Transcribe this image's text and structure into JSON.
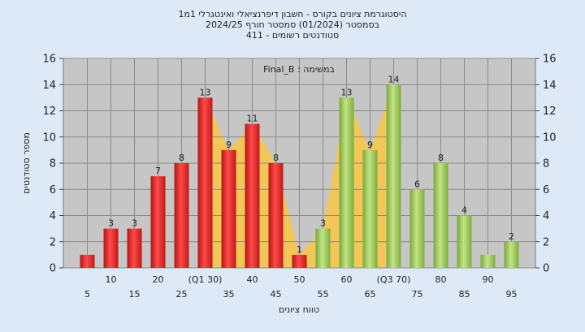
{
  "chart_data": {
    "type": "bar",
    "title_lines": [
      "היסטוגרמת ציונים בקורס - חשבון דיפרנציאלי ואינטגרלי 1מ1",
      "בסמסטר  (01/2024)  סמסטר חורף  2024/25",
      "סטודנטים רשומים - 411"
    ],
    "annotation": "Final_B : במשימה",
    "xlabel": "טווח ציונים",
    "ylabel": "מספר סטודנטים",
    "ylim": [
      0,
      16
    ],
    "yticks": [
      0,
      2,
      4,
      6,
      8,
      10,
      12,
      14,
      16
    ],
    "grid": true,
    "categories": [
      5,
      10,
      15,
      20,
      25,
      30,
      35,
      40,
      45,
      50,
      55,
      60,
      65,
      70,
      75,
      80,
      85,
      90,
      95
    ],
    "category_labels": [
      "5",
      "10",
      "15",
      "20",
      "25",
      "(Q1 30)",
      "35",
      "40",
      "45",
      "50",
      "55",
      "60",
      "65",
      "(Q3 70)",
      "75",
      "80",
      "85",
      "90",
      "95"
    ],
    "values": [
      1,
      3,
      3,
      7,
      8,
      13,
      9,
      11,
      8,
      1,
      3,
      13,
      9,
      14,
      6,
      8,
      4,
      1,
      2
    ],
    "value_labels": [
      "",
      "3",
      "3",
      "7",
      "8",
      "13",
      "9",
      "11",
      "8",
      "1",
      "3",
      "13",
      "9",
      "14",
      "6",
      "8",
      "4",
      "",
      "2"
    ],
    "colors": {
      "below_passing": "#e8282b",
      "passing": "#9bc855",
      "highlight_area": "#f7c64a",
      "plot_background": "#c6c6c6",
      "page_background": "#dde9f6"
    },
    "passing_from": 55,
    "highlight_from": 30,
    "highlight_to": 70
  }
}
